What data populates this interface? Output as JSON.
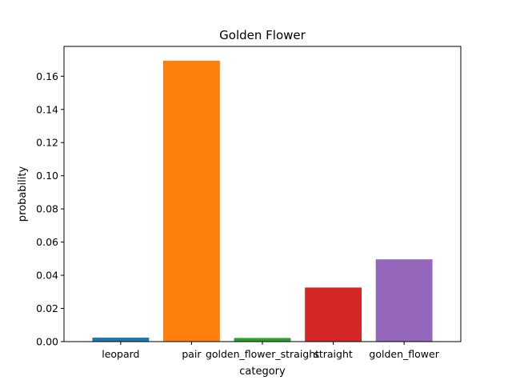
{
  "chart_data": {
    "type": "bar",
    "title": "Golden Flower",
    "xlabel": "category",
    "ylabel": "probability",
    "categories": [
      "leopard",
      "pair",
      "golden_flower_straight",
      "straight",
      "golden_flower"
    ],
    "values": [
      0.0024,
      0.1694,
      0.0022,
      0.0326,
      0.0496
    ],
    "colors": [
      "#1f77b4",
      "#ff7f0e",
      "#2ca02c",
      "#d62728",
      "#9467bd"
    ],
    "ylim": [
      0,
      0.178
    ],
    "yticks": [
      0.0,
      0.02,
      0.04,
      0.06,
      0.08,
      0.1,
      0.12,
      0.14,
      0.16
    ],
    "ytick_labels": [
      "0.00",
      "0.02",
      "0.04",
      "0.06",
      "0.08",
      "0.10",
      "0.12",
      "0.14",
      "0.16"
    ],
    "grid": false,
    "legend": "none"
  }
}
